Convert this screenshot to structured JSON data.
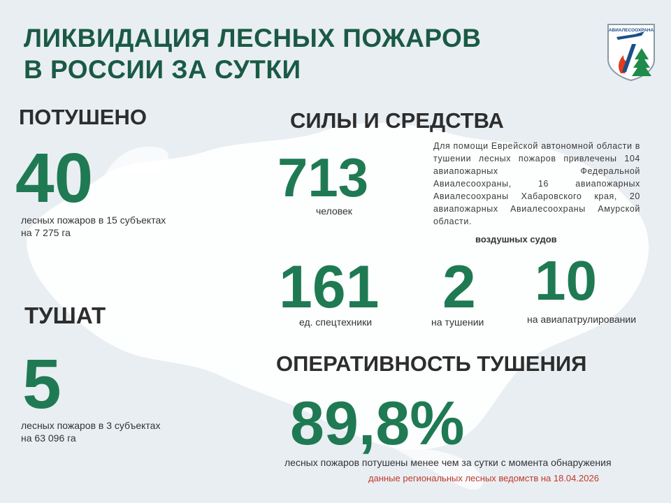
{
  "header": {
    "title_line1": "ЛИКВИДАЦИЯ ЛЕСНЫХ ПОЖАРОВ",
    "title_line2": "В РОССИИ ЗА СУТКИ",
    "logo_text": "АВИАЛЕСООХРАНА"
  },
  "extinguished": {
    "heading": "ПОТУШЕНО",
    "value": "40",
    "caption_line1": "лесных пожаров в 15 субъектах",
    "caption_line2": "на 7 275 га"
  },
  "active": {
    "heading": "ТУШАТ",
    "value": "5",
    "caption_line1": "лесных пожаров в 3 субъектах",
    "caption_line2": "на 63 096 га"
  },
  "forces": {
    "heading": "СИЛЫ И СРЕДСТВА",
    "people_value": "713",
    "people_caption": "человек",
    "description": "Для помощи Еврейской автономной области в тушении лесных пожаров привлечены 104 авиапожарных Федеральной Авиалесоохраны, 16 авиапожарных Авиалесоохраны Хабаровского края, 20 авиапожарных Авиалесоохраны Амурской области.",
    "aircraft_heading": "воздушных судов",
    "equipment_value": "161",
    "equipment_caption": "ед. спецтехники",
    "aircraft_fighting_value": "2",
    "aircraft_fighting_caption": "на тушении",
    "aircraft_patrol_value": "10",
    "aircraft_patrol_caption": "на авиапатрулировании"
  },
  "efficiency": {
    "heading": "ОПЕРАТИВНОСТЬ ТУШЕНИЯ",
    "value": "89,8%",
    "caption": "лесных пожаров потушены менее чем за сутки с момента обнаружения"
  },
  "footnote": "данные региональных лесных ведомств на 18.04.2026",
  "colors": {
    "title": "#1a5a44",
    "big_numbers": "#1f7a53",
    "background": "#e9eef2",
    "map": "#ffffff",
    "footnote": "#c0392b"
  }
}
